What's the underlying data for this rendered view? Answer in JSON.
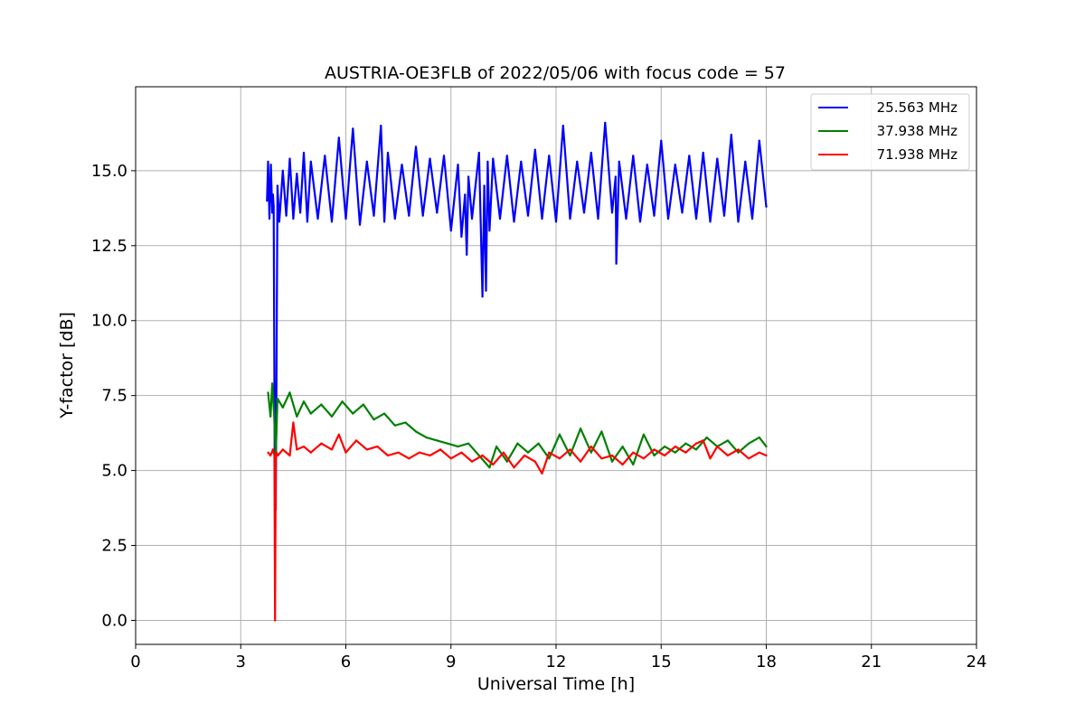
{
  "chart_data": {
    "type": "line",
    "title": "AUSTRIA-OE3FLB of 2022/05/06 with focus code = 57",
    "xlabel": "Universal Time [h]",
    "ylabel": "Y-factor [dB]",
    "xlim": [
      0,
      24
    ],
    "ylim": [
      -0.8,
      17.8
    ],
    "xticks": [
      0,
      3,
      6,
      9,
      12,
      15,
      18,
      21,
      24
    ],
    "yticks": [
      0.0,
      2.5,
      5.0,
      7.5,
      10.0,
      12.5,
      15.0
    ],
    "xtick_labels": [
      "0",
      "3",
      "6",
      "9",
      "12",
      "15",
      "18",
      "21",
      "24"
    ],
    "ytick_labels": [
      "0.0",
      "2.5",
      "5.0",
      "7.5",
      "10.0",
      "12.5",
      "15.0"
    ],
    "grid": true,
    "legend_position": "top-right",
    "series": [
      {
        "name": "25.563 MHz",
        "color": "#0000ff",
        "x": [
          3.75,
          3.78,
          3.82,
          3.86,
          3.9,
          3.92,
          3.94,
          3.97,
          4.0,
          4.05,
          4.1,
          4.2,
          4.3,
          4.4,
          4.5,
          4.6,
          4.7,
          4.8,
          4.9,
          5.0,
          5.2,
          5.4,
          5.6,
          5.8,
          6.0,
          6.2,
          6.4,
          6.6,
          6.8,
          7.0,
          7.1,
          7.2,
          7.4,
          7.6,
          7.8,
          8.0,
          8.2,
          8.4,
          8.6,
          8.8,
          9.0,
          9.2,
          9.3,
          9.4,
          9.45,
          9.5,
          9.6,
          9.8,
          9.9,
          9.95,
          10.0,
          10.05,
          10.1,
          10.2,
          10.4,
          10.6,
          10.8,
          11.0,
          11.2,
          11.4,
          11.6,
          11.8,
          12.0,
          12.2,
          12.4,
          12.6,
          12.8,
          13.0,
          13.2,
          13.4,
          13.6,
          13.7,
          13.72,
          13.8,
          14.0,
          14.2,
          14.4,
          14.6,
          14.8,
          15.0,
          15.2,
          15.4,
          15.6,
          15.8,
          16.0,
          16.2,
          16.4,
          16.6,
          16.8,
          17.0,
          17.2,
          17.4,
          17.6,
          17.8,
          18.0
        ],
        "values": [
          14.0,
          15.3,
          13.4,
          15.2,
          13.6,
          14.2,
          13.8,
          5.5,
          3.7,
          14.5,
          13.3,
          15.0,
          13.5,
          15.4,
          13.4,
          14.9,
          13.6,
          15.6,
          13.3,
          15.3,
          13.4,
          15.5,
          13.3,
          16.1,
          13.4,
          16.4,
          13.2,
          15.3,
          13.5,
          16.5,
          13.3,
          15.6,
          13.4,
          15.2,
          13.5,
          15.8,
          13.5,
          15.4,
          13.6,
          15.5,
          13.0,
          15.2,
          12.8,
          14.2,
          12.2,
          14.8,
          13.4,
          15.6,
          10.8,
          14.5,
          11.0,
          15.3,
          13.0,
          15.4,
          13.4,
          15.5,
          13.3,
          15.3,
          13.5,
          15.7,
          13.4,
          15.5,
          13.3,
          16.5,
          13.4,
          15.3,
          13.6,
          15.6,
          13.4,
          16.6,
          13.6,
          14.8,
          11.9,
          15.3,
          13.4,
          15.5,
          13.3,
          15.2,
          13.5,
          16.0,
          13.4,
          15.2,
          13.6,
          15.5,
          13.4,
          15.6,
          13.3,
          15.4,
          13.5,
          16.2,
          13.3,
          15.3,
          13.4,
          16.0,
          13.8
        ]
      },
      {
        "name": "37.938 MHz",
        "color": "#008000",
        "x": [
          3.78,
          3.85,
          3.9,
          3.95,
          4.0,
          4.05,
          4.2,
          4.4,
          4.6,
          4.8,
          5.0,
          5.3,
          5.6,
          5.9,
          6.2,
          6.5,
          6.8,
          7.1,
          7.4,
          7.7,
          8.0,
          8.3,
          8.6,
          8.9,
          9.2,
          9.5,
          9.8,
          10.1,
          10.3,
          10.6,
          10.9,
          11.2,
          11.5,
          11.8,
          12.1,
          12.4,
          12.7,
          13.0,
          13.3,
          13.6,
          13.9,
          14.2,
          14.5,
          14.8,
          15.1,
          15.4,
          15.7,
          16.0,
          16.3,
          16.6,
          16.9,
          17.2,
          17.5,
          17.8,
          18.0
        ],
        "values": [
          7.6,
          6.8,
          7.9,
          6.9,
          5.5,
          7.4,
          7.1,
          7.6,
          6.8,
          7.3,
          6.9,
          7.2,
          6.8,
          7.3,
          6.9,
          7.2,
          6.7,
          6.9,
          6.5,
          6.6,
          6.3,
          6.1,
          6.0,
          5.9,
          5.8,
          5.9,
          5.5,
          5.1,
          5.8,
          5.3,
          5.9,
          5.6,
          5.9,
          5.4,
          6.2,
          5.5,
          6.4,
          5.6,
          6.3,
          5.3,
          5.8,
          5.2,
          6.2,
          5.5,
          5.8,
          5.6,
          5.9,
          5.7,
          6.1,
          5.8,
          6.0,
          5.6,
          5.9,
          6.1,
          5.8
        ]
      },
      {
        "name": "71.938 MHz",
        "color": "#ff0000",
        "x": [
          3.78,
          3.85,
          3.92,
          3.96,
          3.98,
          4.0,
          4.02,
          4.06,
          4.2,
          4.4,
          4.5,
          4.6,
          4.8,
          5.0,
          5.3,
          5.6,
          5.8,
          6.0,
          6.3,
          6.6,
          6.9,
          7.2,
          7.5,
          7.8,
          8.1,
          8.4,
          8.7,
          9.0,
          9.3,
          9.6,
          9.9,
          10.2,
          10.5,
          10.8,
          11.1,
          11.4,
          11.6,
          11.8,
          12.1,
          12.4,
          12.7,
          13.0,
          13.3,
          13.6,
          13.9,
          14.2,
          14.5,
          14.8,
          15.1,
          15.4,
          15.7,
          16.0,
          16.2,
          16.4,
          16.6,
          16.9,
          17.2,
          17.5,
          17.8,
          18.0
        ],
        "values": [
          5.6,
          5.5,
          5.7,
          5.5,
          0.0,
          5.3,
          5.6,
          5.5,
          5.7,
          5.5,
          6.6,
          5.7,
          5.8,
          5.6,
          5.9,
          5.7,
          6.2,
          5.6,
          6.0,
          5.7,
          5.8,
          5.5,
          5.6,
          5.4,
          5.6,
          5.5,
          5.7,
          5.4,
          5.6,
          5.3,
          5.5,
          5.2,
          5.6,
          5.1,
          5.5,
          5.3,
          4.9,
          5.6,
          5.4,
          5.7,
          5.3,
          5.8,
          5.4,
          5.5,
          5.2,
          5.6,
          5.4,
          5.7,
          5.5,
          5.8,
          5.6,
          5.9,
          6.0,
          5.4,
          5.8,
          5.5,
          5.7,
          5.4,
          5.6,
          5.5
        ]
      }
    ]
  }
}
